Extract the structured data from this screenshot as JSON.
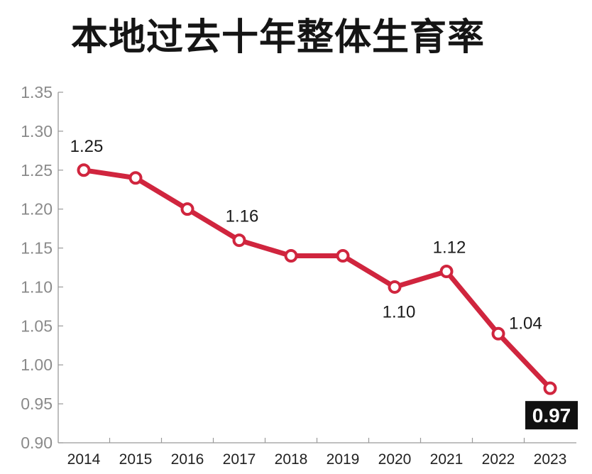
{
  "title": "本地过去十年整体生育率",
  "colors": {
    "line": "#d0253e",
    "axis": "#9a9a9a",
    "ticklabel": "#8a8a8a",
    "highlight_bg": "#111111"
  },
  "chart_data": {
    "type": "line",
    "title": "本地过去十年整体生育率",
    "xlabel": "",
    "ylabel": "",
    "categories": [
      "2014",
      "2015",
      "2016",
      "2017",
      "2018",
      "2019",
      "2020",
      "2021",
      "2022",
      "2023"
    ],
    "values": [
      1.25,
      1.24,
      1.2,
      1.16,
      1.14,
      1.14,
      1.1,
      1.12,
      1.04,
      0.97
    ],
    "ylim": [
      0.9,
      1.35
    ],
    "yticks": [
      "0.90",
      "0.95",
      "1.00",
      "1.05",
      "1.10",
      "1.15",
      "1.20",
      "1.25",
      "1.30",
      "1.35"
    ],
    "grid": false,
    "data_labels": [
      {
        "category": "2014",
        "text": "1.25",
        "position": "above"
      },
      {
        "category": "2017",
        "text": "1.16",
        "position": "above"
      },
      {
        "category": "2020",
        "text": "1.10",
        "position": "below"
      },
      {
        "category": "2021",
        "text": "1.12",
        "position": "above"
      },
      {
        "category": "2022",
        "text": "1.04",
        "position": "right"
      },
      {
        "category": "2023",
        "text": "0.97",
        "position": "below",
        "highlight": true
      }
    ]
  }
}
